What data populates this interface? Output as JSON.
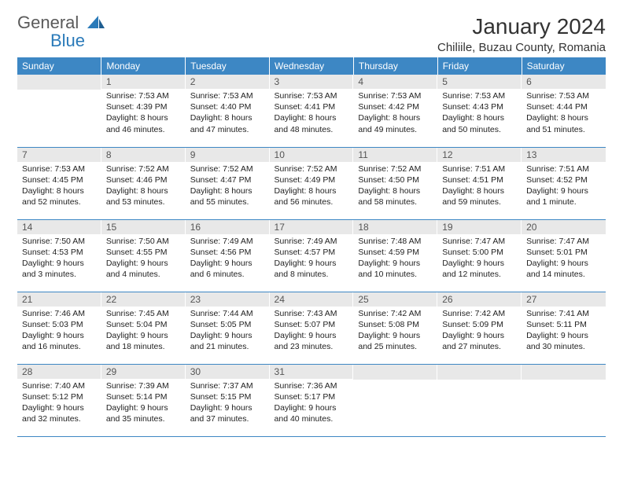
{
  "brand": {
    "part1": "General",
    "part2": "Blue"
  },
  "title": "January 2024",
  "location": "Chiliile, Buzau County, Romania",
  "colors": {
    "header_bg": "#3d87c4",
    "header_fg": "#ffffff",
    "daynum_bg": "#e8e8e8",
    "rule": "#3d87c4",
    "logo_gray": "#5a5a5a",
    "logo_blue": "#2a7ab9"
  },
  "day_headers": [
    "Sunday",
    "Monday",
    "Tuesday",
    "Wednesday",
    "Thursday",
    "Friday",
    "Saturday"
  ],
  "weeks": [
    [
      {
        "n": "",
        "sunrise": "",
        "sunset": "",
        "daylight1": "",
        "daylight2": ""
      },
      {
        "n": "1",
        "sunrise": "Sunrise: 7:53 AM",
        "sunset": "Sunset: 4:39 PM",
        "daylight1": "Daylight: 8 hours",
        "daylight2": "and 46 minutes."
      },
      {
        "n": "2",
        "sunrise": "Sunrise: 7:53 AM",
        "sunset": "Sunset: 4:40 PM",
        "daylight1": "Daylight: 8 hours",
        "daylight2": "and 47 minutes."
      },
      {
        "n": "3",
        "sunrise": "Sunrise: 7:53 AM",
        "sunset": "Sunset: 4:41 PM",
        "daylight1": "Daylight: 8 hours",
        "daylight2": "and 48 minutes."
      },
      {
        "n": "4",
        "sunrise": "Sunrise: 7:53 AM",
        "sunset": "Sunset: 4:42 PM",
        "daylight1": "Daylight: 8 hours",
        "daylight2": "and 49 minutes."
      },
      {
        "n": "5",
        "sunrise": "Sunrise: 7:53 AM",
        "sunset": "Sunset: 4:43 PM",
        "daylight1": "Daylight: 8 hours",
        "daylight2": "and 50 minutes."
      },
      {
        "n": "6",
        "sunrise": "Sunrise: 7:53 AM",
        "sunset": "Sunset: 4:44 PM",
        "daylight1": "Daylight: 8 hours",
        "daylight2": "and 51 minutes."
      }
    ],
    [
      {
        "n": "7",
        "sunrise": "Sunrise: 7:53 AM",
        "sunset": "Sunset: 4:45 PM",
        "daylight1": "Daylight: 8 hours",
        "daylight2": "and 52 minutes."
      },
      {
        "n": "8",
        "sunrise": "Sunrise: 7:52 AM",
        "sunset": "Sunset: 4:46 PM",
        "daylight1": "Daylight: 8 hours",
        "daylight2": "and 53 minutes."
      },
      {
        "n": "9",
        "sunrise": "Sunrise: 7:52 AM",
        "sunset": "Sunset: 4:47 PM",
        "daylight1": "Daylight: 8 hours",
        "daylight2": "and 55 minutes."
      },
      {
        "n": "10",
        "sunrise": "Sunrise: 7:52 AM",
        "sunset": "Sunset: 4:49 PM",
        "daylight1": "Daylight: 8 hours",
        "daylight2": "and 56 minutes."
      },
      {
        "n": "11",
        "sunrise": "Sunrise: 7:52 AM",
        "sunset": "Sunset: 4:50 PM",
        "daylight1": "Daylight: 8 hours",
        "daylight2": "and 58 minutes."
      },
      {
        "n": "12",
        "sunrise": "Sunrise: 7:51 AM",
        "sunset": "Sunset: 4:51 PM",
        "daylight1": "Daylight: 8 hours",
        "daylight2": "and 59 minutes."
      },
      {
        "n": "13",
        "sunrise": "Sunrise: 7:51 AM",
        "sunset": "Sunset: 4:52 PM",
        "daylight1": "Daylight: 9 hours",
        "daylight2": "and 1 minute."
      }
    ],
    [
      {
        "n": "14",
        "sunrise": "Sunrise: 7:50 AM",
        "sunset": "Sunset: 4:53 PM",
        "daylight1": "Daylight: 9 hours",
        "daylight2": "and 3 minutes."
      },
      {
        "n": "15",
        "sunrise": "Sunrise: 7:50 AM",
        "sunset": "Sunset: 4:55 PM",
        "daylight1": "Daylight: 9 hours",
        "daylight2": "and 4 minutes."
      },
      {
        "n": "16",
        "sunrise": "Sunrise: 7:49 AM",
        "sunset": "Sunset: 4:56 PM",
        "daylight1": "Daylight: 9 hours",
        "daylight2": "and 6 minutes."
      },
      {
        "n": "17",
        "sunrise": "Sunrise: 7:49 AM",
        "sunset": "Sunset: 4:57 PM",
        "daylight1": "Daylight: 9 hours",
        "daylight2": "and 8 minutes."
      },
      {
        "n": "18",
        "sunrise": "Sunrise: 7:48 AM",
        "sunset": "Sunset: 4:59 PM",
        "daylight1": "Daylight: 9 hours",
        "daylight2": "and 10 minutes."
      },
      {
        "n": "19",
        "sunrise": "Sunrise: 7:47 AM",
        "sunset": "Sunset: 5:00 PM",
        "daylight1": "Daylight: 9 hours",
        "daylight2": "and 12 minutes."
      },
      {
        "n": "20",
        "sunrise": "Sunrise: 7:47 AM",
        "sunset": "Sunset: 5:01 PM",
        "daylight1": "Daylight: 9 hours",
        "daylight2": "and 14 minutes."
      }
    ],
    [
      {
        "n": "21",
        "sunrise": "Sunrise: 7:46 AM",
        "sunset": "Sunset: 5:03 PM",
        "daylight1": "Daylight: 9 hours",
        "daylight2": "and 16 minutes."
      },
      {
        "n": "22",
        "sunrise": "Sunrise: 7:45 AM",
        "sunset": "Sunset: 5:04 PM",
        "daylight1": "Daylight: 9 hours",
        "daylight2": "and 18 minutes."
      },
      {
        "n": "23",
        "sunrise": "Sunrise: 7:44 AM",
        "sunset": "Sunset: 5:05 PM",
        "daylight1": "Daylight: 9 hours",
        "daylight2": "and 21 minutes."
      },
      {
        "n": "24",
        "sunrise": "Sunrise: 7:43 AM",
        "sunset": "Sunset: 5:07 PM",
        "daylight1": "Daylight: 9 hours",
        "daylight2": "and 23 minutes."
      },
      {
        "n": "25",
        "sunrise": "Sunrise: 7:42 AM",
        "sunset": "Sunset: 5:08 PM",
        "daylight1": "Daylight: 9 hours",
        "daylight2": "and 25 minutes."
      },
      {
        "n": "26",
        "sunrise": "Sunrise: 7:42 AM",
        "sunset": "Sunset: 5:09 PM",
        "daylight1": "Daylight: 9 hours",
        "daylight2": "and 27 minutes."
      },
      {
        "n": "27",
        "sunrise": "Sunrise: 7:41 AM",
        "sunset": "Sunset: 5:11 PM",
        "daylight1": "Daylight: 9 hours",
        "daylight2": "and 30 minutes."
      }
    ],
    [
      {
        "n": "28",
        "sunrise": "Sunrise: 7:40 AM",
        "sunset": "Sunset: 5:12 PM",
        "daylight1": "Daylight: 9 hours",
        "daylight2": "and 32 minutes."
      },
      {
        "n": "29",
        "sunrise": "Sunrise: 7:39 AM",
        "sunset": "Sunset: 5:14 PM",
        "daylight1": "Daylight: 9 hours",
        "daylight2": "and 35 minutes."
      },
      {
        "n": "30",
        "sunrise": "Sunrise: 7:37 AM",
        "sunset": "Sunset: 5:15 PM",
        "daylight1": "Daylight: 9 hours",
        "daylight2": "and 37 minutes."
      },
      {
        "n": "31",
        "sunrise": "Sunrise: 7:36 AM",
        "sunset": "Sunset: 5:17 PM",
        "daylight1": "Daylight: 9 hours",
        "daylight2": "and 40 minutes."
      },
      {
        "n": "",
        "sunrise": "",
        "sunset": "",
        "daylight1": "",
        "daylight2": ""
      },
      {
        "n": "",
        "sunrise": "",
        "sunset": "",
        "daylight1": "",
        "daylight2": ""
      },
      {
        "n": "",
        "sunrise": "",
        "sunset": "",
        "daylight1": "",
        "daylight2": ""
      }
    ]
  ]
}
